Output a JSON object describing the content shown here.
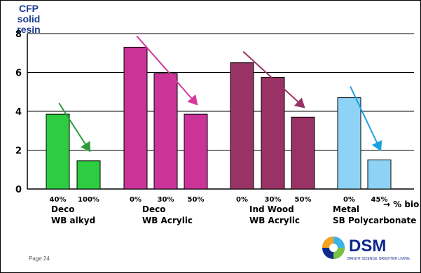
{
  "slide": {
    "page_label": "Page 24"
  },
  "logo": {
    "text": "DSM",
    "tagline": "BRIGHT SCIENCE. BRIGHTER LIVING."
  },
  "chart_data": {
    "type": "bar",
    "ylabel": "CFP solid resin",
    "xlabel": "→ % bio",
    "ylim": [
      0,
      8
    ],
    "yticks": [
      0,
      2,
      4,
      6,
      8
    ],
    "grid": true,
    "groups": [
      {
        "name_lines": [
          "Deco",
          "WB alkyd"
        ],
        "color": "#2ecc40",
        "arrow_color": "#2e9c3a",
        "bars": [
          {
            "category": "40%",
            "value": 3.85
          },
          {
            "category": "100%",
            "value": 1.45
          }
        ]
      },
      {
        "name_lines": [
          "Deco",
          "WB Acrylic"
        ],
        "color": "#cc3399",
        "arrow_color": "#d63aa0",
        "bars": [
          {
            "category": "0%",
            "value": 7.3
          },
          {
            "category": "30%",
            "value": 5.95
          },
          {
            "category": "50%",
            "value": 3.85
          }
        ]
      },
      {
        "name_lines": [
          "Ind Wood",
          "WB Acrylic"
        ],
        "color": "#993366",
        "arrow_color": "#993366",
        "bars": [
          {
            "category": "0%",
            "value": 6.5
          },
          {
            "category": "30%",
            "value": 5.75
          },
          {
            "category": "50%",
            "value": 3.7
          }
        ]
      },
      {
        "name_lines": [
          "Metal",
          "SB Polycarbonate"
        ],
        "color": "#8ed3f5",
        "arrow_color": "#1aa0e0",
        "bars": [
          {
            "category": "0%",
            "value": 4.7
          },
          {
            "category": "45%",
            "value": 1.5
          }
        ]
      }
    ]
  }
}
